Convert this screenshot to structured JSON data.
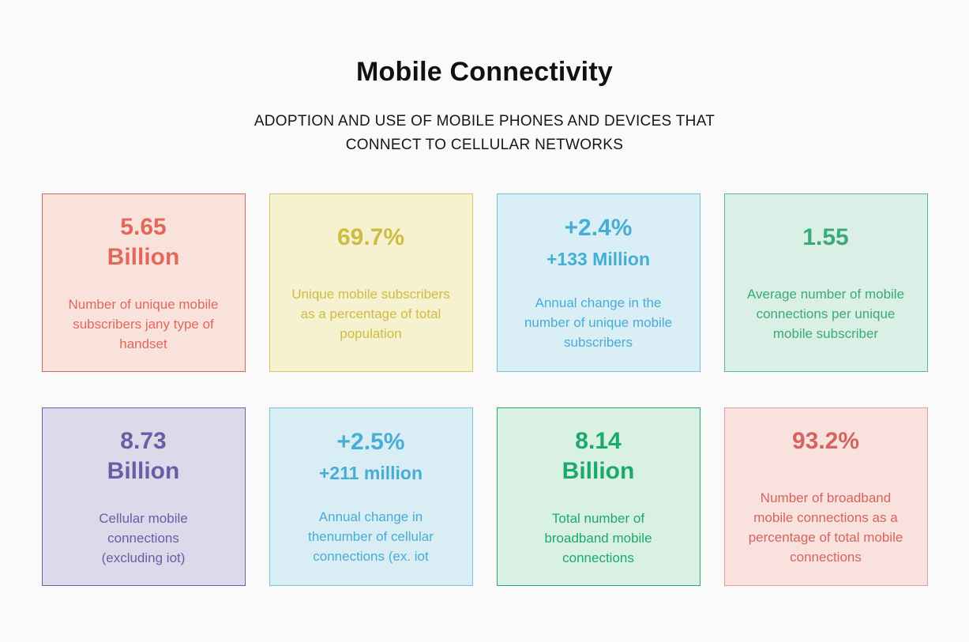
{
  "header": {
    "title": "Mobile Connectivity",
    "subtitle": "ADOPTION AND USE OF MOBILE PHONES AND DEVICES THAT CONNECT TO CELLULAR NETWORKS"
  },
  "cards": [
    {
      "id": "unique-subscribers",
      "values": [
        {
          "text": "5.65",
          "size": "lg"
        },
        {
          "text": "Billion",
          "size": "lg"
        }
      ],
      "description_lines": [
        "Number of unique mobile",
        "subscribers jany type of",
        "handset"
      ],
      "colors": {
        "bg": "#f9e1dc",
        "border": "#c96a5e",
        "fg": "#e0695c"
      }
    },
    {
      "id": "subscriber-penetration",
      "values": [
        {
          "text": "69.7%",
          "size": "lg"
        }
      ],
      "description_lines": [
        "Unique mobile subscribers",
        "as a percentage of total",
        "population"
      ],
      "colors": {
        "bg": "#f6f1cf",
        "border": "#d8c75f",
        "fg": "#cebc42"
      }
    },
    {
      "id": "subscriber-growth",
      "values": [
        {
          "text": "+2.4%",
          "size": "lg"
        },
        {
          "text": "+133 Million",
          "size": "md"
        }
      ],
      "description_lines": [
        "Annual change in the",
        "number of unique mobile",
        "subscribers"
      ],
      "colors": {
        "bg": "#d9eef5",
        "border": "#70c4db",
        "fg": "#47add4"
      }
    },
    {
      "id": "connections-per-subscriber",
      "values": [
        {
          "text": "1.55",
          "size": "lg"
        }
      ],
      "description_lines": [
        "Average number of mobile",
        "connections per unique",
        "mobile subscriber"
      ],
      "colors": {
        "bg": "#daf0e6",
        "border": "#58bb90",
        "fg": "#3aaa78"
      }
    },
    {
      "id": "cellular-connections",
      "values": [
        {
          "text": "8.73",
          "size": "lg"
        },
        {
          "text": "Billion",
          "size": "lg"
        }
      ],
      "description_lines": [
        "Cellular mobile",
        "connections",
        "(excluding iot)"
      ],
      "colors": {
        "bg": "#dcd9eb",
        "border": "#6f60a6",
        "fg": "#6b5ca4"
      }
    },
    {
      "id": "connection-growth",
      "values": [
        {
          "text": "+2.5%",
          "size": "lg"
        },
        {
          "text": "+211 million",
          "size": "md"
        }
      ],
      "description_lines": [
        "Annual change in",
        "thenumber of cellular",
        "connections (ex. iot"
      ],
      "colors": {
        "bg": "#d8edf4",
        "border": "#74c6dc",
        "fg": "#47add4"
      }
    },
    {
      "id": "broadband-connections",
      "values": [
        {
          "text": "8.14",
          "size": "lg"
        },
        {
          "text": "Billion",
          "size": "lg"
        }
      ],
      "description_lines": [
        "Total number of",
        "broadband mobile",
        "connections"
      ],
      "colors": {
        "bg": "#d9f1e3",
        "border": "#28a873",
        "fg": "#1da96c"
      }
    },
    {
      "id": "broadband-share",
      "values": [
        {
          "text": "93.2%",
          "size": "lg"
        }
      ],
      "description_lines": [
        "Number of broadband",
        "mobile connections as a",
        "percentage of total mobile",
        "connections"
      ],
      "colors": {
        "bg": "#f9e1de",
        "border": "#d9a29b",
        "fg": "#d4645f"
      }
    }
  ],
  "chart_data": {
    "type": "table",
    "title": "Mobile Connectivity",
    "subtitle": "ADOPTION AND USE OF MOBILE PHONES AND DEVICES THAT CONNECT TO CELLULAR NETWORKS",
    "columns": [
      "value",
      "description"
    ],
    "rows": [
      [
        "5.65 Billion",
        "Number of unique mobile subscribers jany type of handset"
      ],
      [
        "69.7%",
        "Unique mobile subscribers as a percentage of total population"
      ],
      [
        "+2.4% (+133 Million)",
        "Annual change in the number of unique mobile subscribers"
      ],
      [
        "1.55",
        "Average number of mobile connections per unique mobile subscriber"
      ],
      [
        "8.73 Billion",
        "Cellular mobile connections (excluding iot)"
      ],
      [
        "+2.5% (+211 million)",
        "Annual change in thenumber of cellular connections (ex. iot"
      ],
      [
        "8.14 Billion",
        "Total number of broadband mobile connections"
      ],
      [
        "93.2%",
        "Number of broadband mobile connections as a percentage of total mobile connections"
      ]
    ]
  }
}
